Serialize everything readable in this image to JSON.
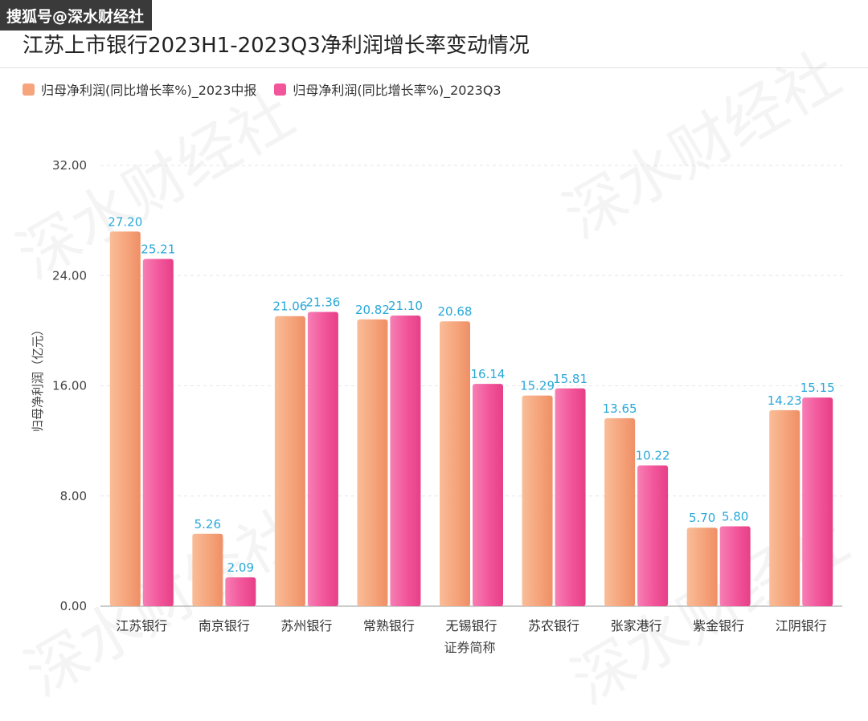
{
  "header": {
    "source_tag": "搜狐号@深水财经社",
    "watermark": "深水财经社"
  },
  "colors": {
    "series_1": "#f5a47b",
    "series_2": "#f2559a",
    "label": "#2aa8d8"
  },
  "chart_data": {
    "type": "bar",
    "title": "江苏上市银行2023H1-2023Q3净利润增长率变动情况",
    "xlabel": "证券简称",
    "ylabel": "归母净利润（亿元）",
    "ylim": [
      0,
      32
    ],
    "yticks": [
      "0.00",
      "8.00",
      "16.00",
      "24.00",
      "32.00"
    ],
    "grid": true,
    "legend_position": "top-left",
    "categories": [
      "江苏银行",
      "南京银行",
      "苏州银行",
      "常熟银行",
      "无锡银行",
      "苏农银行",
      "张家港行",
      "紫金银行",
      "江阴银行"
    ],
    "series": [
      {
        "name": "归母净利润(同比增长率%)_2023中报",
        "values": [
          27.2,
          5.26,
          21.06,
          20.82,
          20.68,
          15.29,
          13.65,
          5.7,
          14.23
        ],
        "labels": [
          "27.20",
          "5.26",
          "21.06",
          "20.82",
          "20.68",
          "15.29",
          "13.65",
          "5.70",
          "14.23"
        ]
      },
      {
        "name": "归母净利润(同比增长率%)_2023Q3",
        "values": [
          25.21,
          2.09,
          21.36,
          21.1,
          16.14,
          15.81,
          10.22,
          5.8,
          15.15
        ],
        "labels": [
          "25.21",
          "2.09",
          "21.36",
          "21.10",
          "16.14",
          "15.81",
          "10.22",
          "5.80",
          "15.15"
        ]
      }
    ]
  }
}
